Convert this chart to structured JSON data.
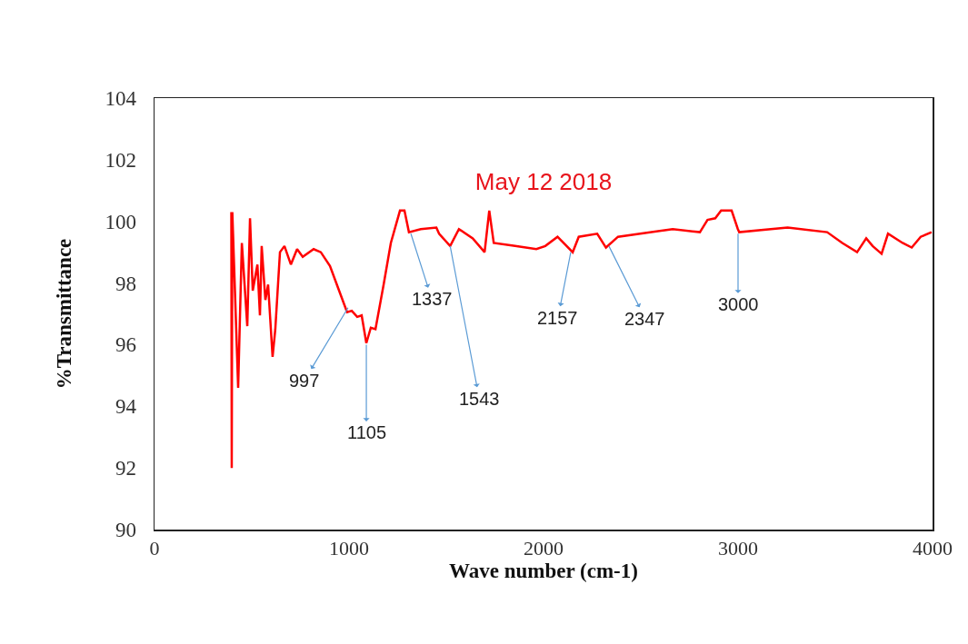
{
  "chart_data": {
    "type": "line",
    "title": "May 12 2018",
    "xlabel": "Wave number (cm-1)",
    "ylabel": "%Transmittance",
    "xlim": [
      0,
      4000
    ],
    "xticks": [
      0,
      1000,
      2000,
      3000,
      4000
    ],
    "ylim": [
      90,
      104
    ],
    "yticks": [
      90,
      92,
      94,
      96,
      98,
      100,
      102,
      104
    ],
    "grid": false,
    "marker": "none",
    "line_style": "solid",
    "series": [
      {
        "color": "#ff0000",
        "x": [
          395,
          397,
          400,
          430,
          449,
          477,
          491,
          505,
          529,
          542,
          551,
          570,
          584,
          607,
          621,
          645,
          668,
          701,
          733,
          762,
          818,
          855,
          902,
          949,
          990,
          1014,
          1042,
          1065,
          1089,
          1112,
          1136,
          1178,
          1215,
          1262,
          1285,
          1308,
          1369,
          1449,
          1463,
          1520,
          1565,
          1636,
          1697,
          1721,
          1744,
          1854,
          1963,
          2009,
          2072,
          2150,
          2181,
          2276,
          2321,
          2383,
          2555,
          2664,
          2804,
          2843,
          2883,
          2913,
          2967,
          2999,
          3006,
          3255,
          3458,
          3536,
          3612,
          3659,
          3692,
          3738,
          3771,
          3846,
          3893,
          3939,
          3995
        ],
        "values": [
          100.3,
          92.0,
          100.3,
          94.6,
          99.3,
          96.6,
          100.1,
          97.75,
          98.6,
          96.95,
          99.2,
          97.45,
          97.95,
          95.6,
          96.5,
          99.0,
          99.2,
          98.6,
          99.1,
          98.85,
          99.1,
          99.0,
          98.55,
          97.75,
          97.05,
          97.1,
          96.9,
          96.95,
          96.05,
          96.55,
          96.5,
          97.95,
          99.3,
          100.35,
          100.35,
          99.65,
          99.75,
          99.8,
          99.6,
          99.2,
          99.75,
          99.45,
          99.0,
          100.35,
          99.3,
          99.2,
          99.1,
          99.2,
          99.5,
          99.0,
          99.5,
          99.6,
          99.15,
          99.5,
          99.65,
          99.75,
          99.65,
          100.05,
          100.1,
          100.35,
          100.35,
          99.75,
          99.65,
          99.8,
          99.65,
          99.3,
          99.0,
          99.45,
          99.2,
          98.95,
          99.6,
          99.3,
          99.15,
          99.5,
          99.65
        ]
      }
    ],
    "annotations": [
      {
        "text": "997",
        "x": 995,
        "y": 97.2
      },
      {
        "text": "1105",
        "x": 1089,
        "y": 96.0
      },
      {
        "text": "1337",
        "x": 1318,
        "y": 99.6
      },
      {
        "text": "1543",
        "x": 1520,
        "y": 99.2
      },
      {
        "text": "2157",
        "x": 2140,
        "y": 99.0
      },
      {
        "text": "2347",
        "x": 2336,
        "y": 99.2
      },
      {
        "text": "3000",
        "x": 3000,
        "y": 99.6
      }
    ]
  }
}
